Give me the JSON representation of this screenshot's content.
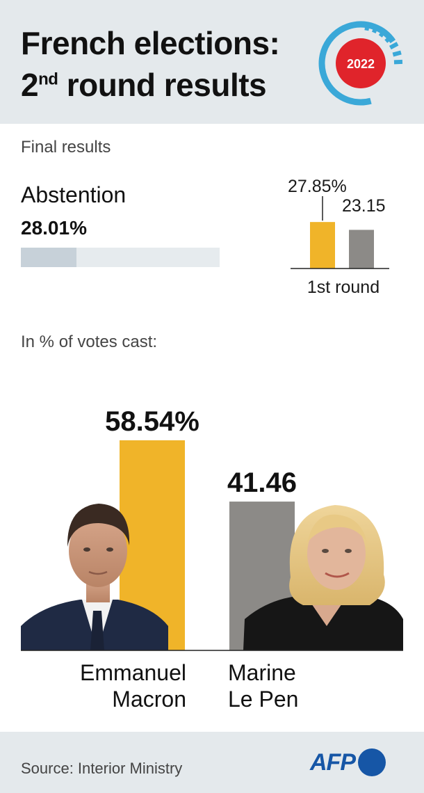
{
  "header": {
    "title_line1": "French elections:",
    "title_line2_pre": "2",
    "title_line2_sup": "nd",
    "title_line2_post": " round results",
    "badge_year": "2022"
  },
  "subtitle": "Final results",
  "abstention": {
    "label": "Abstention",
    "value_label": "28.01%",
    "value": 28.01,
    "first_round": {
      "label": "1st round",
      "values": [
        27.85,
        23.15
      ],
      "value_labels": [
        "27.85%",
        "23.15"
      ],
      "colors": [
        "#f0b429",
        "#8c8a87"
      ]
    }
  },
  "votes_caption": "In % of votes cast:",
  "chart_data": {
    "type": "bar",
    "categories": [
      "Emmanuel Macron",
      "Marine Le Pen"
    ],
    "values": [
      58.54,
      41.46
    ],
    "value_labels": [
      "58.54%",
      "41.46"
    ],
    "colors": [
      "#f0b429",
      "#8c8a87"
    ],
    "name_lines": [
      [
        "Emmanuel",
        "Macron"
      ],
      [
        "Marine",
        "Le Pen"
      ]
    ],
    "ylim": [
      0,
      100
    ]
  },
  "footer": {
    "source": "Source: Interior Ministry",
    "logo_text": "AFP"
  },
  "colors": {
    "header_bg": "#e4e9ec",
    "badge_ring": "#3aa8d8",
    "badge_red": "#e0242b",
    "afp_blue": "#1656a6"
  }
}
